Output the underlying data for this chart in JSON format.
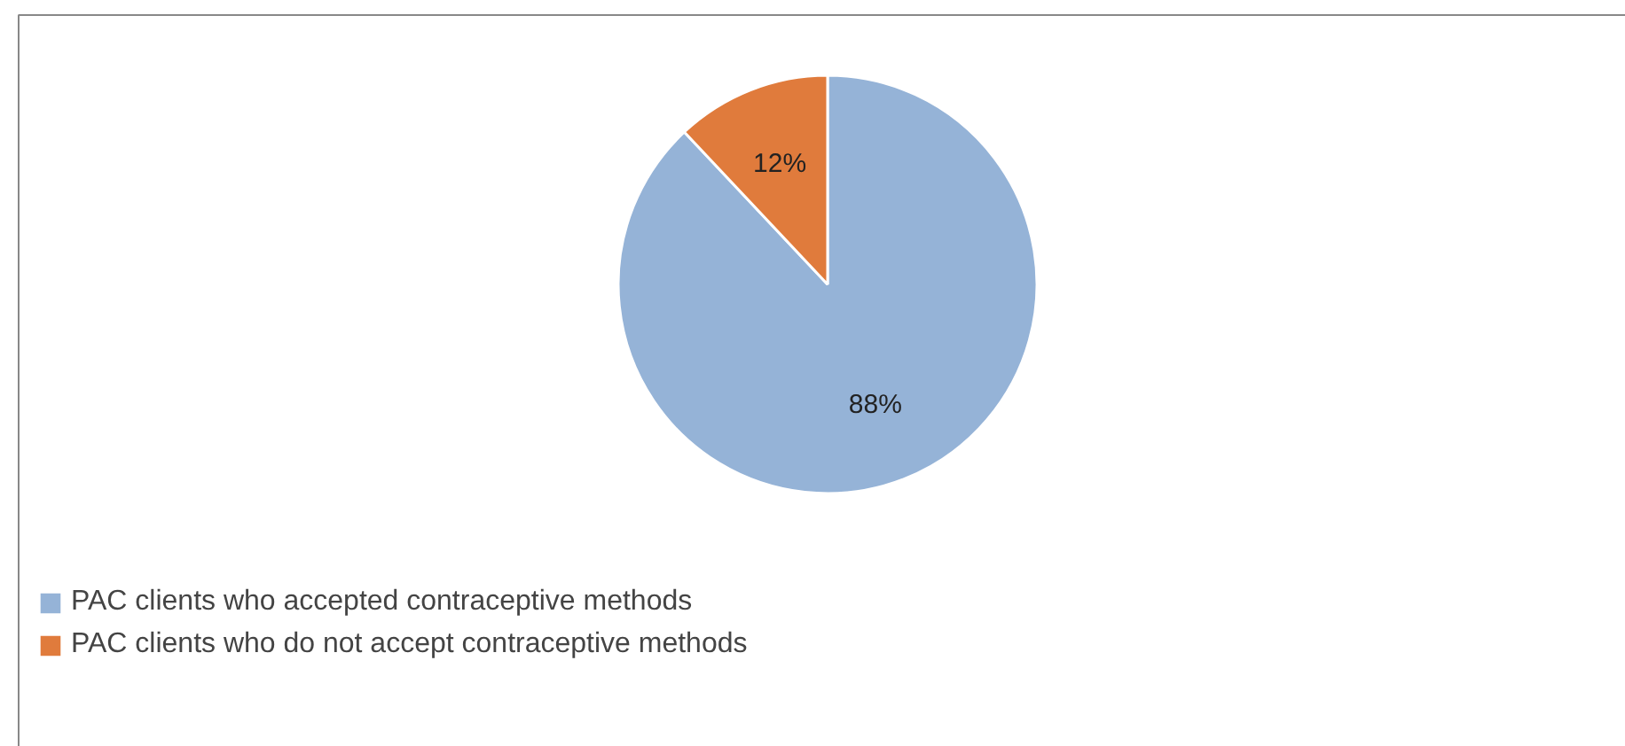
{
  "chart_data": {
    "type": "pie",
    "categories": [
      "PAC clients who accepted contraceptive methods",
      "PAC clients who do not accept contraceptive methods"
    ],
    "values": [
      88,
      12
    ],
    "colors": [
      "#95b3d7",
      "#e07b3c"
    ],
    "value_labels": [
      "88%",
      "12%"
    ],
    "legend": "bottom left"
  }
}
